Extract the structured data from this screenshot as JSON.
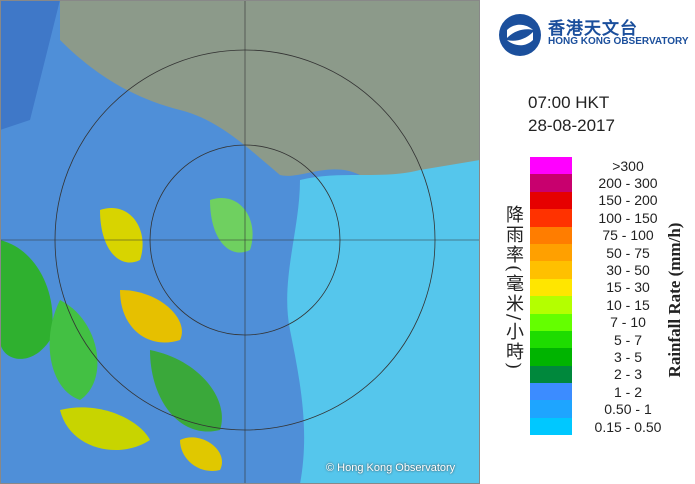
{
  "logo": {
    "chinese": "香港天文台",
    "english": "HONG KONG OBSERVATORY"
  },
  "time": "07:00 HKT",
  "date": "28-08-2017",
  "legend_title_chinese": "降雨率(毫米/小時)",
  "legend_title_english": "Rainfall Rate (mm/h)",
  "legend": [
    {
      "label": ">300",
      "color": "#ff00ff"
    },
    {
      "label": "200 - 300",
      "color": "#c8006e"
    },
    {
      "label": "150 - 200",
      "color": "#e60000"
    },
    {
      "label": "100 - 150",
      "color": "#ff3200"
    },
    {
      "label": "75 - 100",
      "color": "#ff7d00"
    },
    {
      "label": "50 - 75",
      "color": "#ffa000"
    },
    {
      "label": "30 - 50",
      "color": "#ffc000"
    },
    {
      "label": "15 - 30",
      "color": "#ffe600"
    },
    {
      "label": "10 - 15",
      "color": "#b4ff00"
    },
    {
      "label": "7 - 10",
      "color": "#64ff00"
    },
    {
      "label": "5 - 7",
      "color": "#1edc00"
    },
    {
      "label": "3 - 5",
      "color": "#00b400"
    },
    {
      "label": "2 - 3",
      "color": "#00883c"
    },
    {
      "label": "1 - 2",
      "color": "#3c8cff"
    },
    {
      "label": "0.50 - 1",
      "color": "#1ea5ff"
    },
    {
      "label": "0.15 - 0.50",
      "color": "#00c8ff"
    }
  ],
  "copyright": "© Hong Kong Observatory"
}
